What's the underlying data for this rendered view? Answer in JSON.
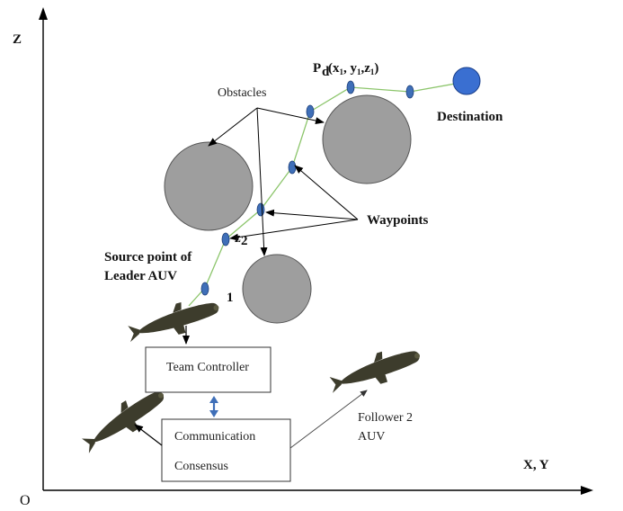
{
  "axes": {
    "z_label": "Z",
    "xy_label": "X, Y",
    "origin_label": "O"
  },
  "labels": {
    "pd_main": "P",
    "pd_sub": "d",
    "pd_coords": "(x",
    "pd_coords_full": "(x1, y1, z1)",
    "obstacles": "Obstacles",
    "destination": "Destination",
    "waypoints": "Waypoints",
    "source_line1": "Source point of",
    "source_line2": "Leader AUV",
    "z2_main": "z",
    "z2_sub": "2",
    "waypoint_one": "1",
    "follower_line1": "Follower 2",
    "follower_line2": "AUV"
  },
  "boxes": {
    "team_controller": "Team Controller",
    "communication": "Communication",
    "consensus": "Consensus"
  },
  "colors": {
    "obstacle_fill": "#9e9e9e",
    "path_line": "#8cc56b",
    "waypoint_fill": "#3f6fb8",
    "destination_fill": "#3a6fd1",
    "auv_body": "#3d3c2c"
  }
}
